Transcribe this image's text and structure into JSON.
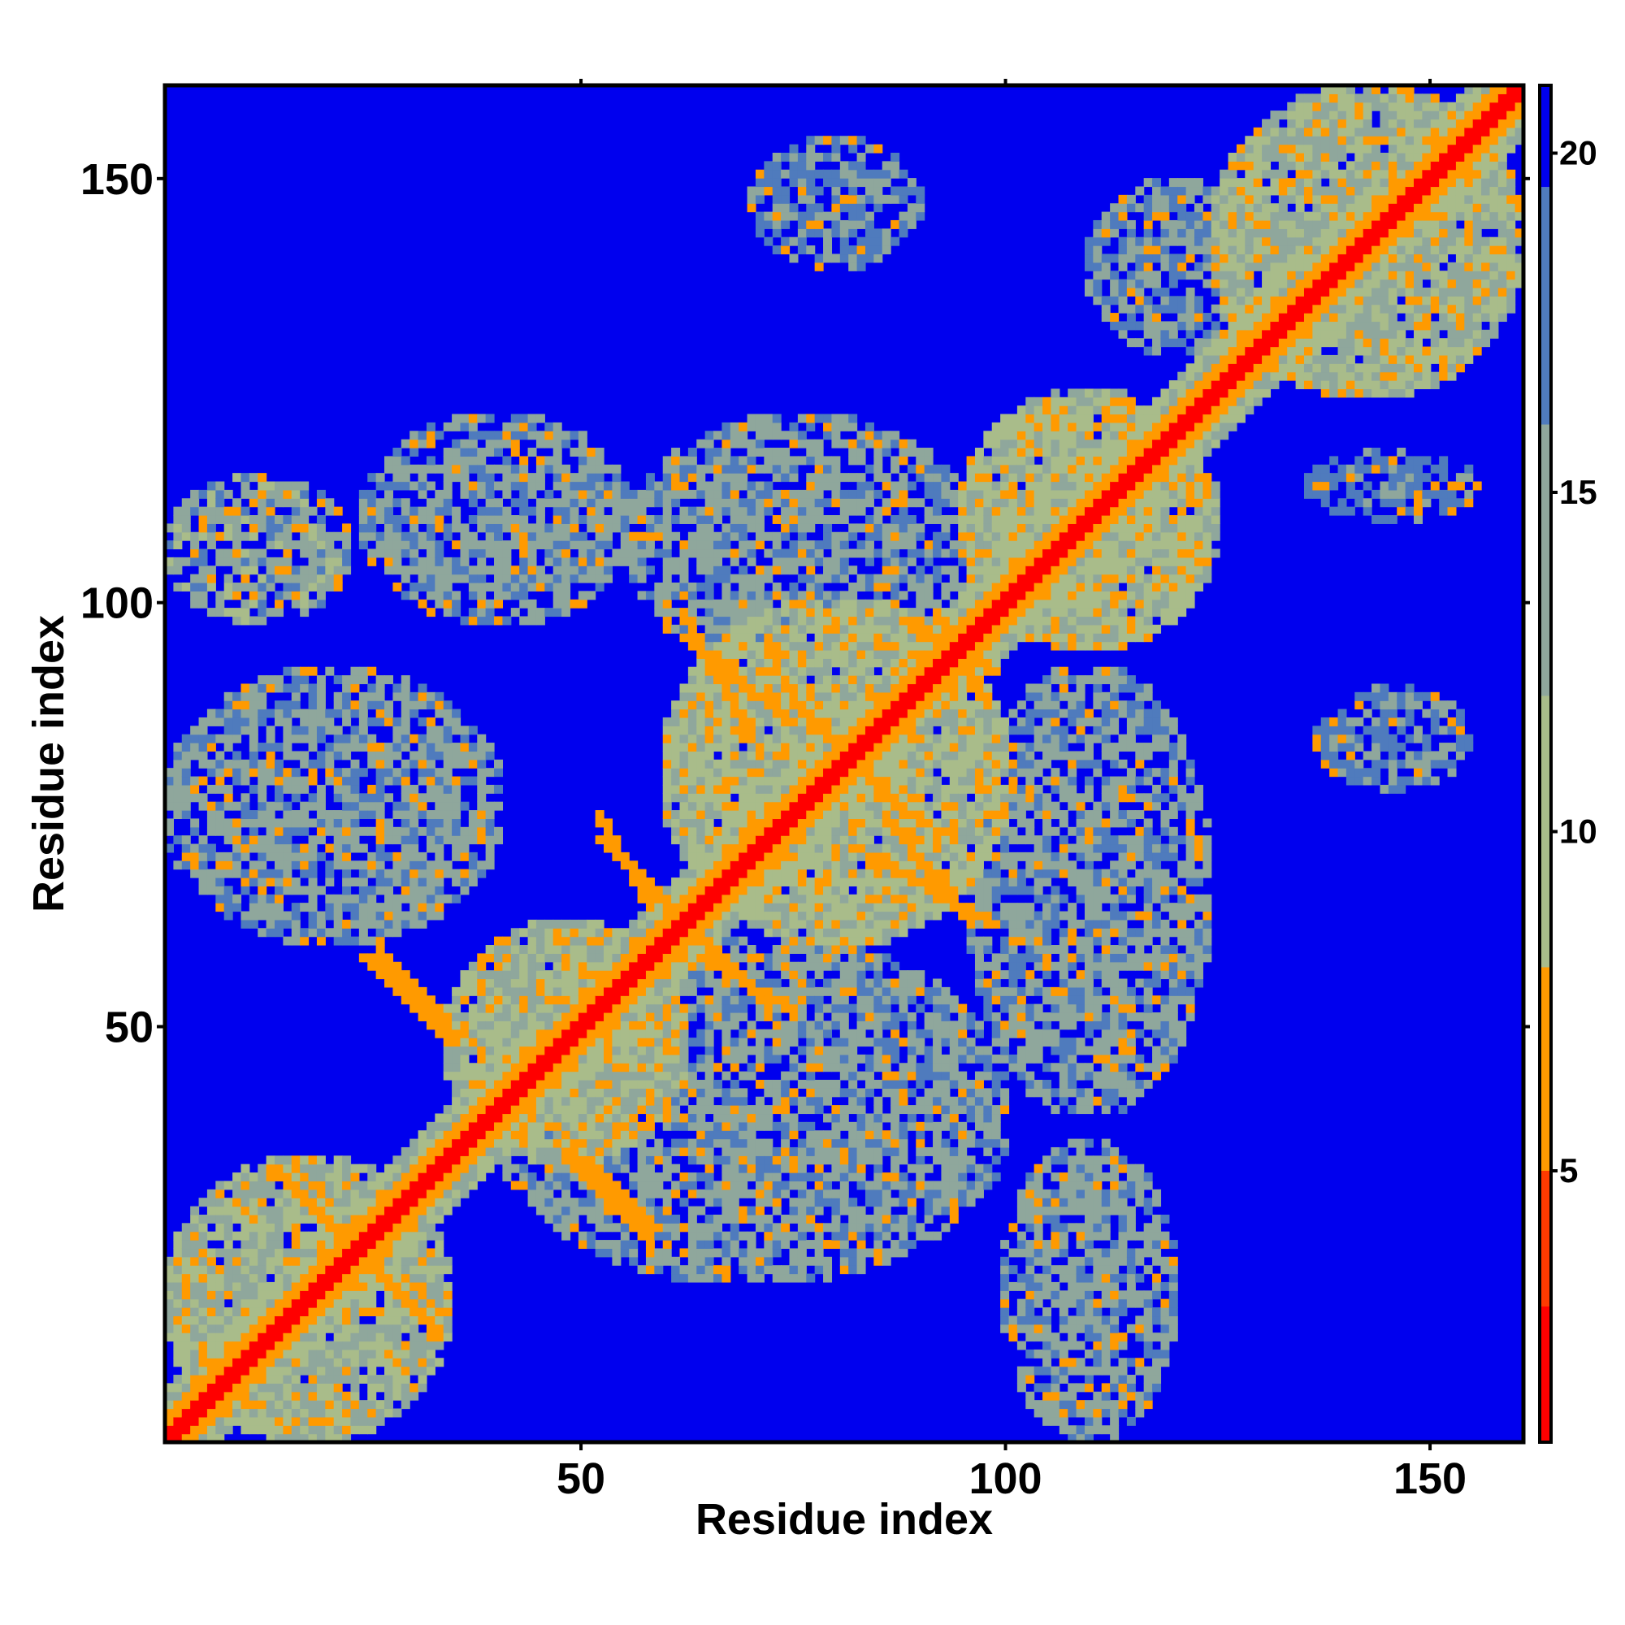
{
  "chart_data": {
    "type": "heatmap",
    "title": "",
    "xlabel": "Residue index",
    "ylabel": "Residue index",
    "n_residues": 161,
    "xlim": [
      1,
      161
    ],
    "ylim": [
      1,
      161
    ],
    "x_ticks": [
      "50",
      "100",
      "150"
    ],
    "x_tick_values": [
      50,
      100,
      150
    ],
    "y_ticks": [
      "50",
      "100",
      "150"
    ],
    "y_tick_values": [
      50,
      100,
      150
    ],
    "colorbar": {
      "min": 1,
      "max": 21,
      "tick_labels": [
        "5",
        "10",
        "15",
        "20"
      ],
      "tick_values": [
        5,
        10,
        15,
        20
      ],
      "colors": [
        "#ff0000",
        "#ff3a00",
        "#ff9a00",
        "#a9bc8a",
        "#8fa79c",
        "#4f7bbd",
        "#0000ee"
      ]
    },
    "background_value": 21,
    "description_blocks": [
      {
        "x": [
          1,
          34
        ],
        "y": [
          1,
          34
        ],
        "value": 13
      },
      {
        "x": [
          34,
          62
        ],
        "y": [
          34,
          62
        ],
        "value": 13
      },
      {
        "x": [
          60,
          100
        ],
        "y": [
          60,
          100
        ],
        "value": 12
      },
      {
        "x": [
          95,
          125
        ],
        "y": [
          95,
          125
        ],
        "value": 12
      },
      {
        "x": [
          125,
          161
        ],
        "y": [
          125,
          161
        ],
        "value": 13
      },
      {
        "x": [
          1,
          22
        ],
        "y": [
          98,
          115
        ],
        "value": 14
      },
      {
        "x": [
          24,
          56
        ],
        "y": [
          98,
          122
        ],
        "value": 15
      },
      {
        "x": [
          56,
          96
        ],
        "y": [
          92,
          122
        ],
        "value": 15
      },
      {
        "x": [
          70,
          90
        ],
        "y": [
          140,
          155
        ],
        "value": 17
      },
      {
        "x": [
          96,
          124
        ],
        "y": [
          40,
          92
        ],
        "value": 15
      },
      {
        "x": [
          100,
          120
        ],
        "y": [
          1,
          36
        ],
        "value": 15
      },
      {
        "x": [
          40,
          100
        ],
        "y": [
          20,
          60
        ],
        "value": 15
      },
      {
        "x": [
          1,
          40
        ],
        "y": [
          60,
          92
        ],
        "value": 15
      },
      {
        "x": [
          137,
          155
        ],
        "y": [
          78,
          90
        ],
        "value": 17
      },
      {
        "x": [
          136,
          156
        ],
        "y": [
          110,
          118
        ],
        "value": 18
      },
      {
        "x": [
          110,
          130
        ],
        "y": [
          130,
          150
        ],
        "value": 16
      }
    ],
    "contact_lines": [
      {
        "from": [
          14,
          32
        ],
        "to": [
          32,
          14
        ],
        "value": 6
      },
      {
        "from": [
          24,
          58
        ],
        "to": [
          34,
          48
        ],
        "value": 6
      },
      {
        "from": [
          50,
          34
        ],
        "to": [
          58,
          26
        ],
        "value": 6
      },
      {
        "from": [
          52,
          72
        ],
        "to": [
          60,
          64
        ],
        "value": 6
      },
      {
        "from": [
          64,
          58
        ],
        "to": [
          74,
          52
        ],
        "value": 6
      },
      {
        "from": [
          75,
          88
        ],
        "to": [
          88,
          75
        ],
        "value": 6
      },
      {
        "from": [
          84,
          70
        ],
        "to": [
          98,
          62
        ],
        "value": 6
      },
      {
        "from": [
          62,
          96
        ],
        "to": [
          74,
          86
        ],
        "value": 6
      },
      {
        "from": [
          88,
          98
        ],
        "to": [
          98,
          92
        ],
        "value": 6
      }
    ]
  }
}
